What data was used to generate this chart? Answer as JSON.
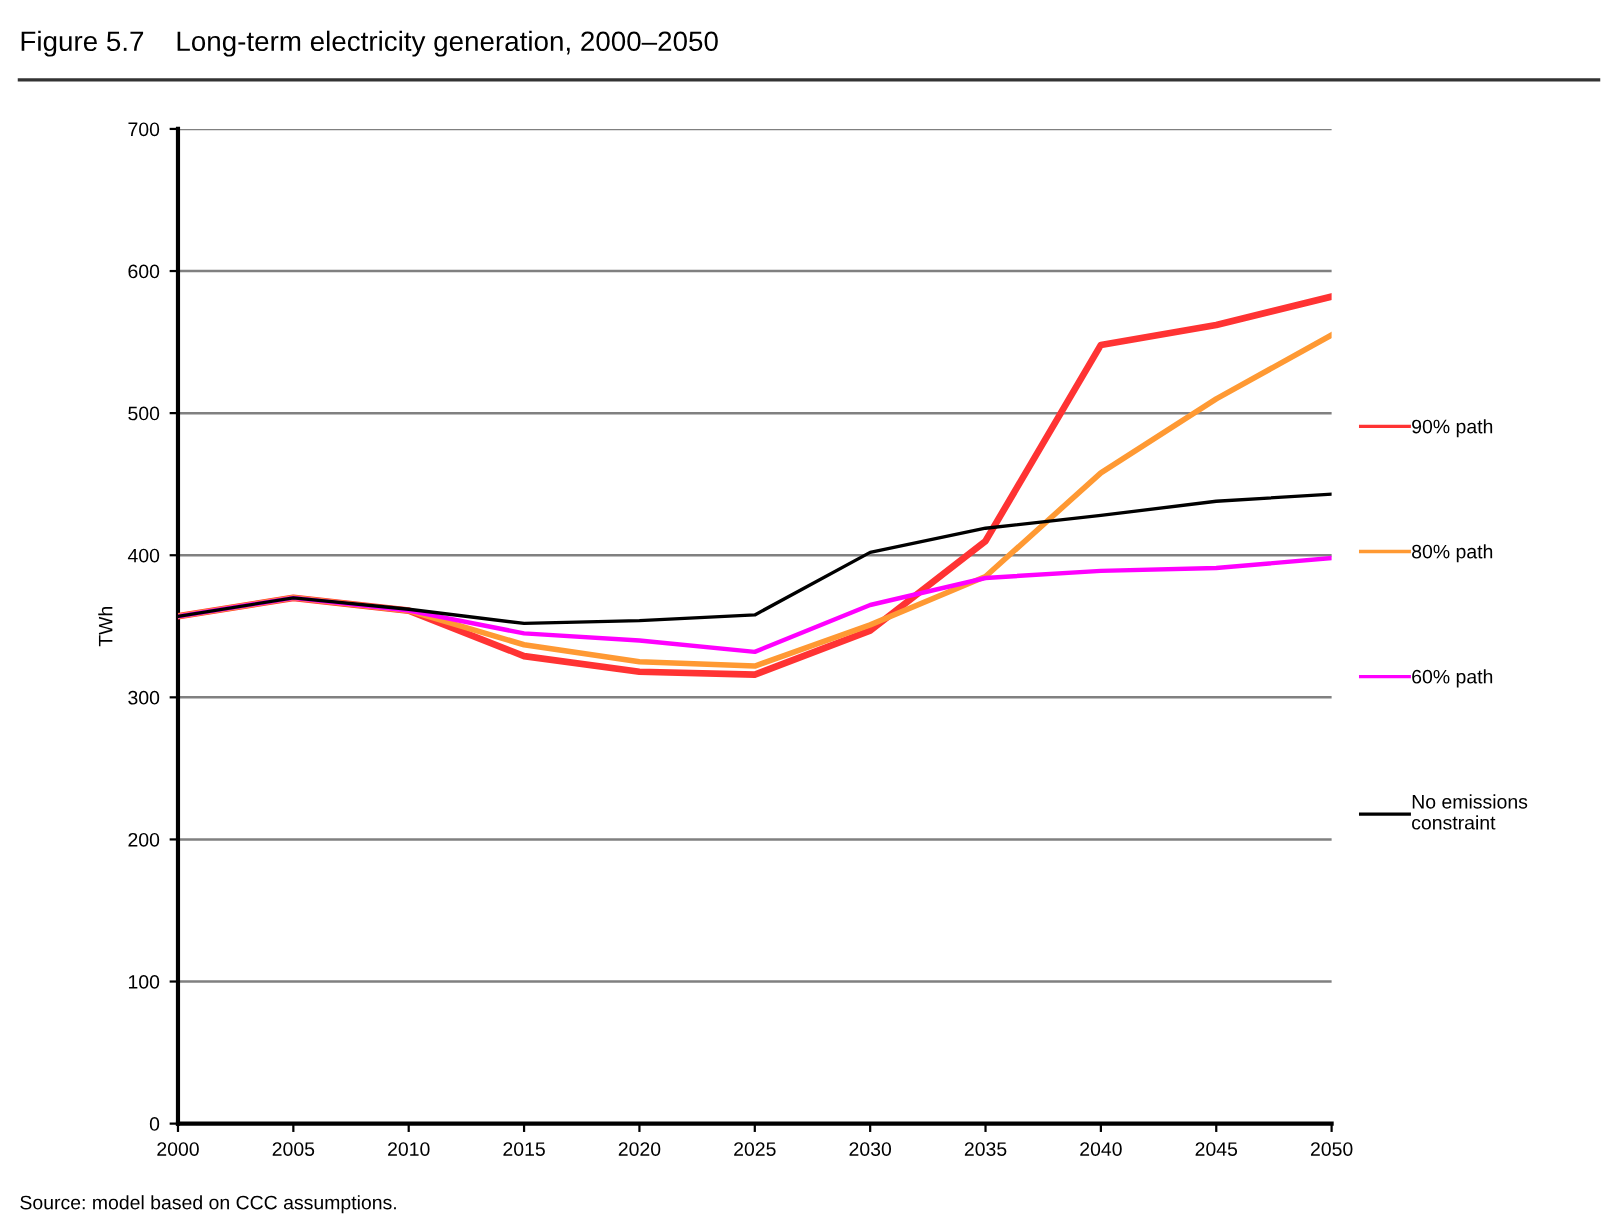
{
  "chart_data": {
    "type": "line",
    "title": "Figure 5.7    Long-term electricity generation, 2000–2050",
    "ylabel": "TWh",
    "x": [
      2000,
      2005,
      2010,
      2015,
      2020,
      2025,
      2030,
      2035,
      2040,
      2045,
      2050
    ],
    "series": [
      {
        "name": "90% path",
        "color": "#ff3333",
        "values": [
          357,
          370,
          361,
          329,
          318,
          316,
          347,
          410,
          548,
          562,
          582
        ]
      },
      {
        "name": "80% path",
        "color": "#ff9933",
        "values": [
          357,
          370,
          361,
          337,
          325,
          322,
          351,
          385,
          458,
          510,
          555
        ]
      },
      {
        "name": "60% path",
        "color": "#ff00ff",
        "values": [
          357,
          370,
          361,
          345,
          340,
          332,
          365,
          384,
          389,
          391,
          398
        ]
      },
      {
        "name": "No emissions constraint",
        "color": "#000000",
        "values": [
          357,
          370,
          362,
          352,
          354,
          358,
          402,
          419,
          428,
          438,
          443
        ]
      }
    ],
    "xlim": [
      2000,
      2050
    ],
    "xticks": [
      2000,
      2005,
      2010,
      2015,
      2020,
      2025,
      2030,
      2035,
      2040,
      2045,
      2050
    ],
    "ylim": [
      0,
      700
    ],
    "yticks": [
      0,
      100,
      200,
      300,
      400,
      500,
      600,
      700
    ],
    "grid": "y",
    "legend": "right",
    "marker": "none",
    "line_style": "solid",
    "annotations": [
      "Source: model based on CCC assumptions."
    ]
  }
}
